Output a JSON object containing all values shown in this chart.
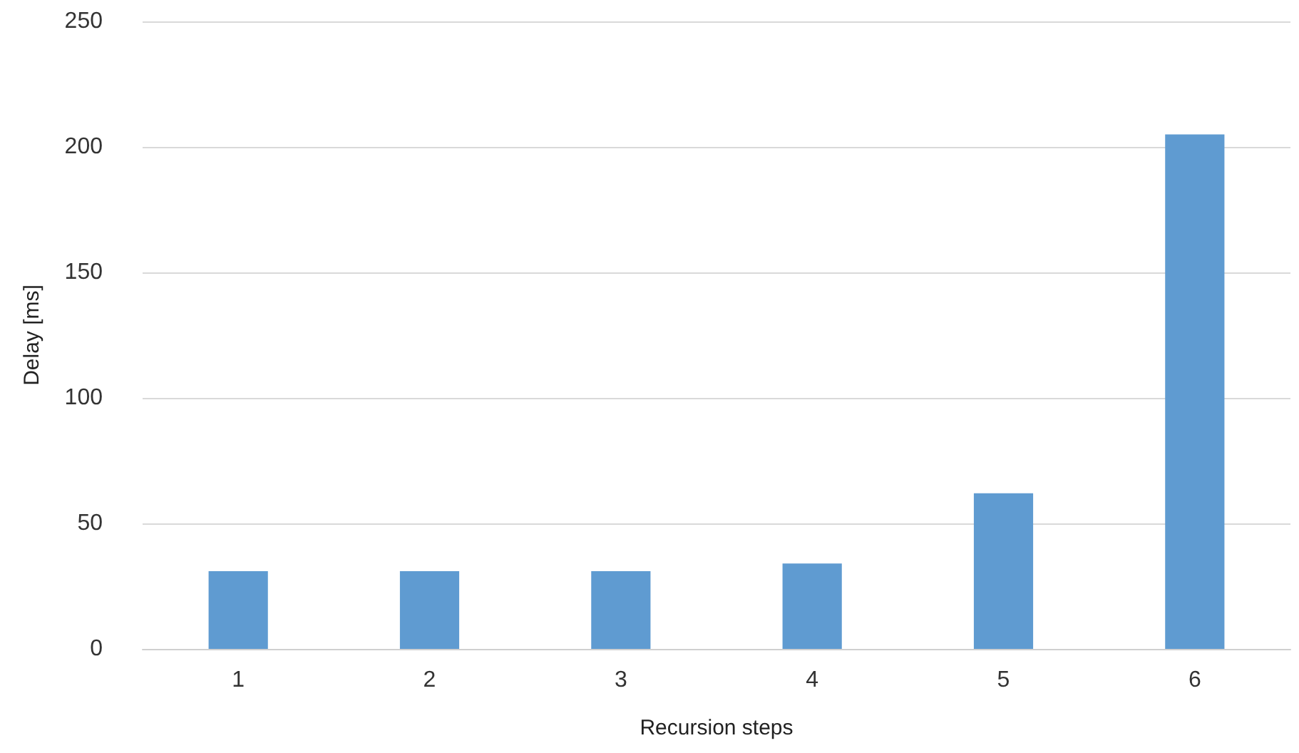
{
  "chart_data": {
    "type": "bar",
    "xlabel": "Recursion steps",
    "ylabel": "Delay [ms]",
    "categories": [
      "1",
      "2",
      "3",
      "4",
      "5",
      "6"
    ],
    "values": [
      31,
      31,
      31,
      34,
      62,
      205
    ],
    "color": "#5f9bd1",
    "ylim": [
      0,
      250
    ],
    "yticks": [
      0,
      50,
      100,
      150,
      200,
      250
    ],
    "grid": "y"
  }
}
